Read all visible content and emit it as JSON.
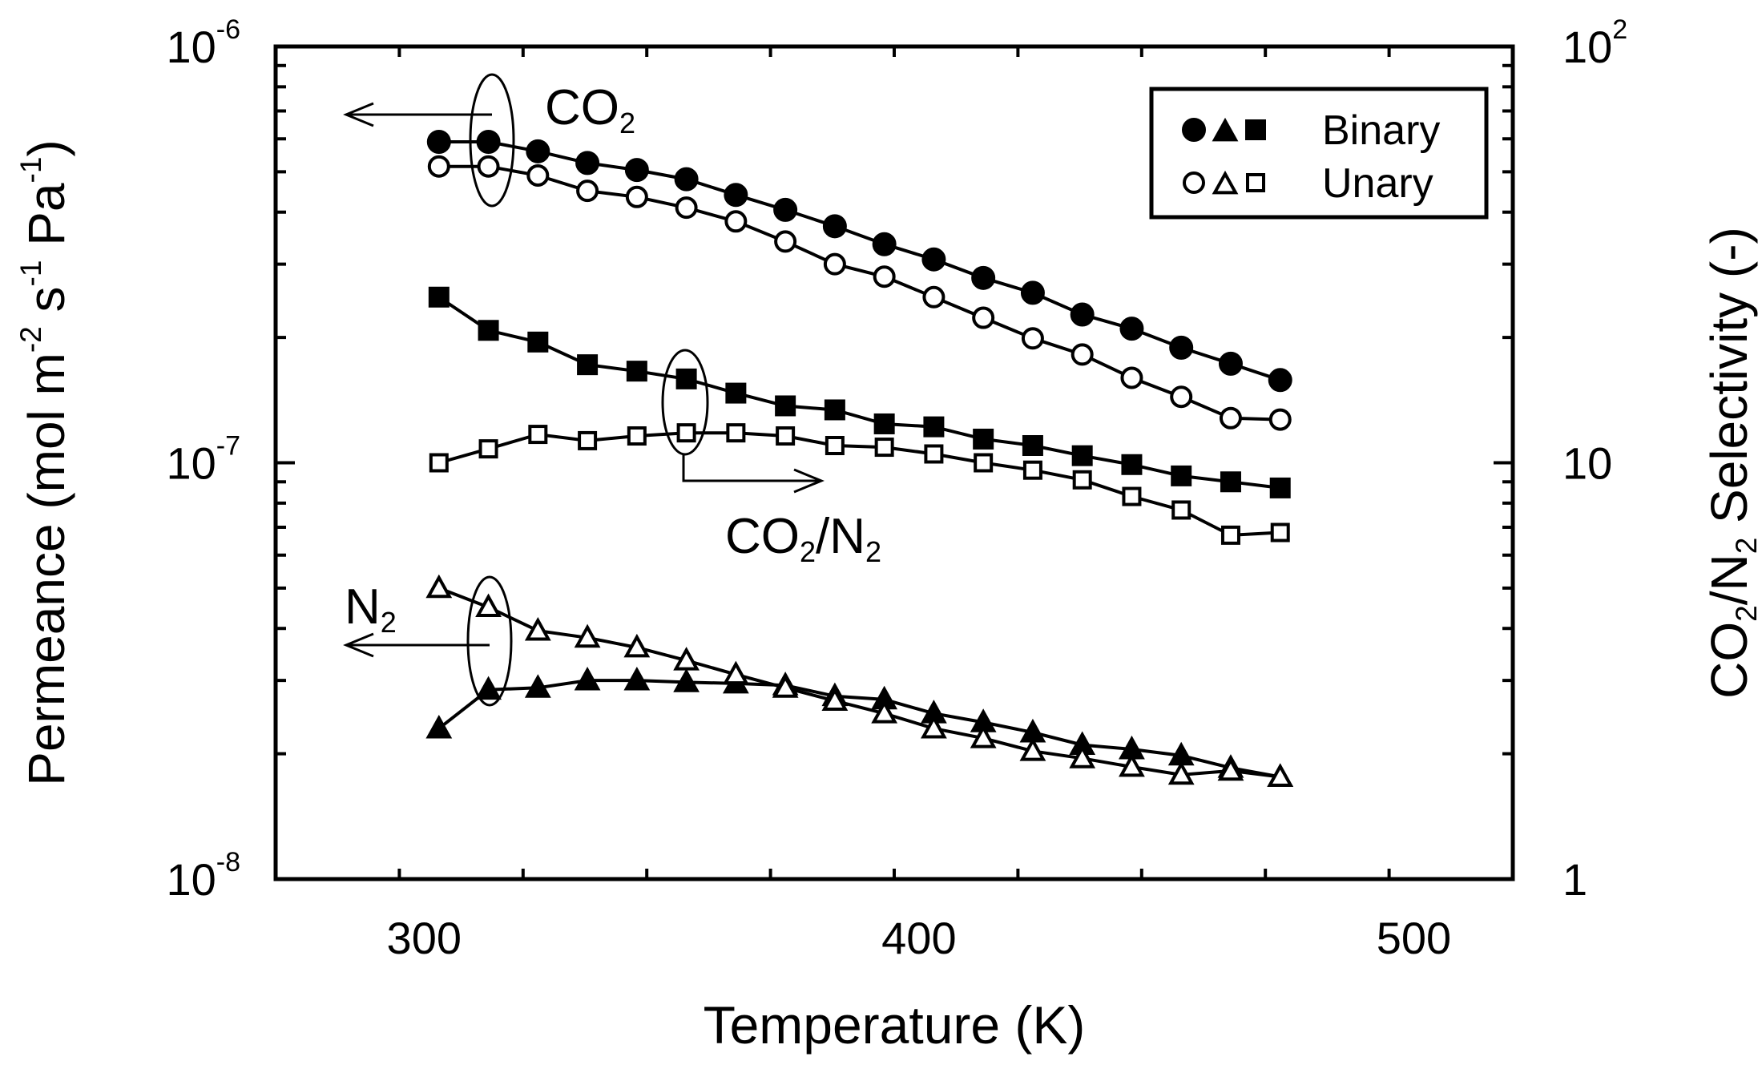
{
  "chart_data": {
    "type": "line",
    "title": "",
    "xlabel": "Temperature (K)",
    "ylabel_left": {
      "parts": [
        {
          "t": "Permeance (mol m",
          "s": ""
        },
        {
          "t": "-2",
          "s": "sup"
        },
        {
          "t": " s",
          "s": ""
        },
        {
          "t": "-1",
          "s": "sup"
        },
        {
          "t": " Pa",
          "s": ""
        },
        {
          "t": "-1",
          "s": "sup"
        },
        {
          "t": ")",
          "s": ""
        }
      ]
    },
    "ylabel_right": {
      "parts": [
        {
          "t": "CO",
          "s": ""
        },
        {
          "t": "2",
          "s": "sub"
        },
        {
          "t": "/N",
          "s": ""
        },
        {
          "t": "2",
          "s": "sub"
        },
        {
          "t": " Selectivity (-)",
          "s": ""
        }
      ]
    },
    "xlim": [
      270,
      520
    ],
    "x_ticks": [
      300,
      400,
      500
    ],
    "x_tick_labels": [
      "300",
      "400",
      "500"
    ],
    "y_left": {
      "scale": "log",
      "lim": [
        1e-08,
        1e-06
      ],
      "tick_labels": [
        {
          "value": 1e-06,
          "base": "10",
          "exp": "-6"
        },
        {
          "value": 1e-07,
          "base": "10",
          "exp": "-7"
        },
        {
          "value": 1e-08,
          "base": "10",
          "exp": "-8"
        }
      ]
    },
    "y_right": {
      "scale": "log",
      "lim": [
        1,
        100
      ],
      "tick_labels": [
        {
          "value": 100,
          "base": "10",
          "exp": "2"
        },
        {
          "value": 10,
          "base": "10",
          "exp": ""
        },
        {
          "value": 1,
          "base": "1",
          "exp": ""
        }
      ]
    },
    "x": [
      303,
      313,
      323,
      333,
      343,
      353,
      363,
      373,
      383,
      393,
      403,
      413,
      423,
      433,
      443,
      453,
      463,
      473
    ],
    "series": [
      {
        "name": "CO2 permeance (binary)",
        "axis": "left",
        "marker": "circle",
        "filled": true,
        "values": [
          5.9e-07,
          5.9e-07,
          5.6e-07,
          5.25e-07,
          5.05e-07,
          4.8e-07,
          4.4e-07,
          4.05e-07,
          3.7e-07,
          3.35e-07,
          3.08e-07,
          2.78e-07,
          2.56e-07,
          2.27e-07,
          2.1e-07,
          1.89e-07,
          1.73e-07,
          1.58e-07
        ]
      },
      {
        "name": "CO2 permeance (unary)",
        "axis": "left",
        "marker": "circle",
        "filled": false,
        "values": [
          5.15e-07,
          5.15e-07,
          4.9e-07,
          4.5e-07,
          4.35e-07,
          4.1e-07,
          3.8e-07,
          3.4e-07,
          3e-07,
          2.8e-07,
          2.5e-07,
          2.23e-07,
          1.99e-07,
          1.82e-07,
          1.6e-07,
          1.44e-07,
          1.28e-07,
          1.27e-07
        ]
      },
      {
        "name": "CO2/N2 selectivity (binary)",
        "axis": "right",
        "marker": "square",
        "filled": true,
        "values": [
          25.0,
          20.8,
          19.5,
          17.2,
          16.6,
          15.9,
          14.7,
          13.7,
          13.4,
          12.4,
          12.2,
          11.4,
          11.0,
          10.4,
          9.9,
          9.3,
          9.0,
          8.7
        ]
      },
      {
        "name": "CO2/N2 selectivity (unary)",
        "axis": "right",
        "marker": "square",
        "filled": false,
        "values": [
          10.0,
          10.8,
          11.7,
          11.3,
          11.6,
          11.8,
          11.8,
          11.6,
          11.0,
          10.9,
          10.5,
          10.0,
          9.6,
          9.1,
          8.3,
          7.7,
          6.7,
          6.8
        ]
      },
      {
        "name": "N2 permeance (binary)",
        "axis": "left",
        "marker": "triangle",
        "filled": true,
        "values": [
          2.3e-08,
          2.85e-08,
          2.88e-08,
          3e-08,
          3e-08,
          2.97e-08,
          2.95e-08,
          2.92e-08,
          2.75e-08,
          2.7e-08,
          2.5e-08,
          2.38e-08,
          2.25e-08,
          2.1e-08,
          2.05e-08,
          1.98e-08,
          1.85e-08,
          1.76e-08
        ]
      },
      {
        "name": "N2 permeance (unary)",
        "axis": "left",
        "marker": "triangle",
        "filled": false,
        "values": [
          5e-08,
          4.5e-08,
          3.95e-08,
          3.8e-08,
          3.6e-08,
          3.35e-08,
          3.1e-08,
          2.88e-08,
          2.68e-08,
          2.5e-08,
          2.3e-08,
          2.18e-08,
          2.03e-08,
          1.95e-08,
          1.86e-08,
          1.78e-08,
          1.82e-08,
          1.76e-08
        ]
      }
    ],
    "legend": {
      "placement": "top-right",
      "entries": [
        {
          "symbols": "●▲■",
          "label": "Binary"
        },
        {
          "symbols": "○△□",
          "label": "Unary"
        }
      ]
    },
    "annotations": [
      {
        "id": "co2",
        "parts": [
          {
            "t": "CO",
            "s": ""
          },
          {
            "t": "2",
            "s": "sub"
          }
        ]
      },
      {
        "id": "co2n2",
        "parts": [
          {
            "t": "CO",
            "s": ""
          },
          {
            "t": "2",
            "s": "sub"
          },
          {
            "t": "/N",
            "s": ""
          },
          {
            "t": "2",
            "s": "sub"
          }
        ]
      },
      {
        "id": "n2",
        "parts": [
          {
            "t": "N",
            "s": ""
          },
          {
            "t": "2",
            "s": "sub"
          }
        ]
      }
    ]
  }
}
